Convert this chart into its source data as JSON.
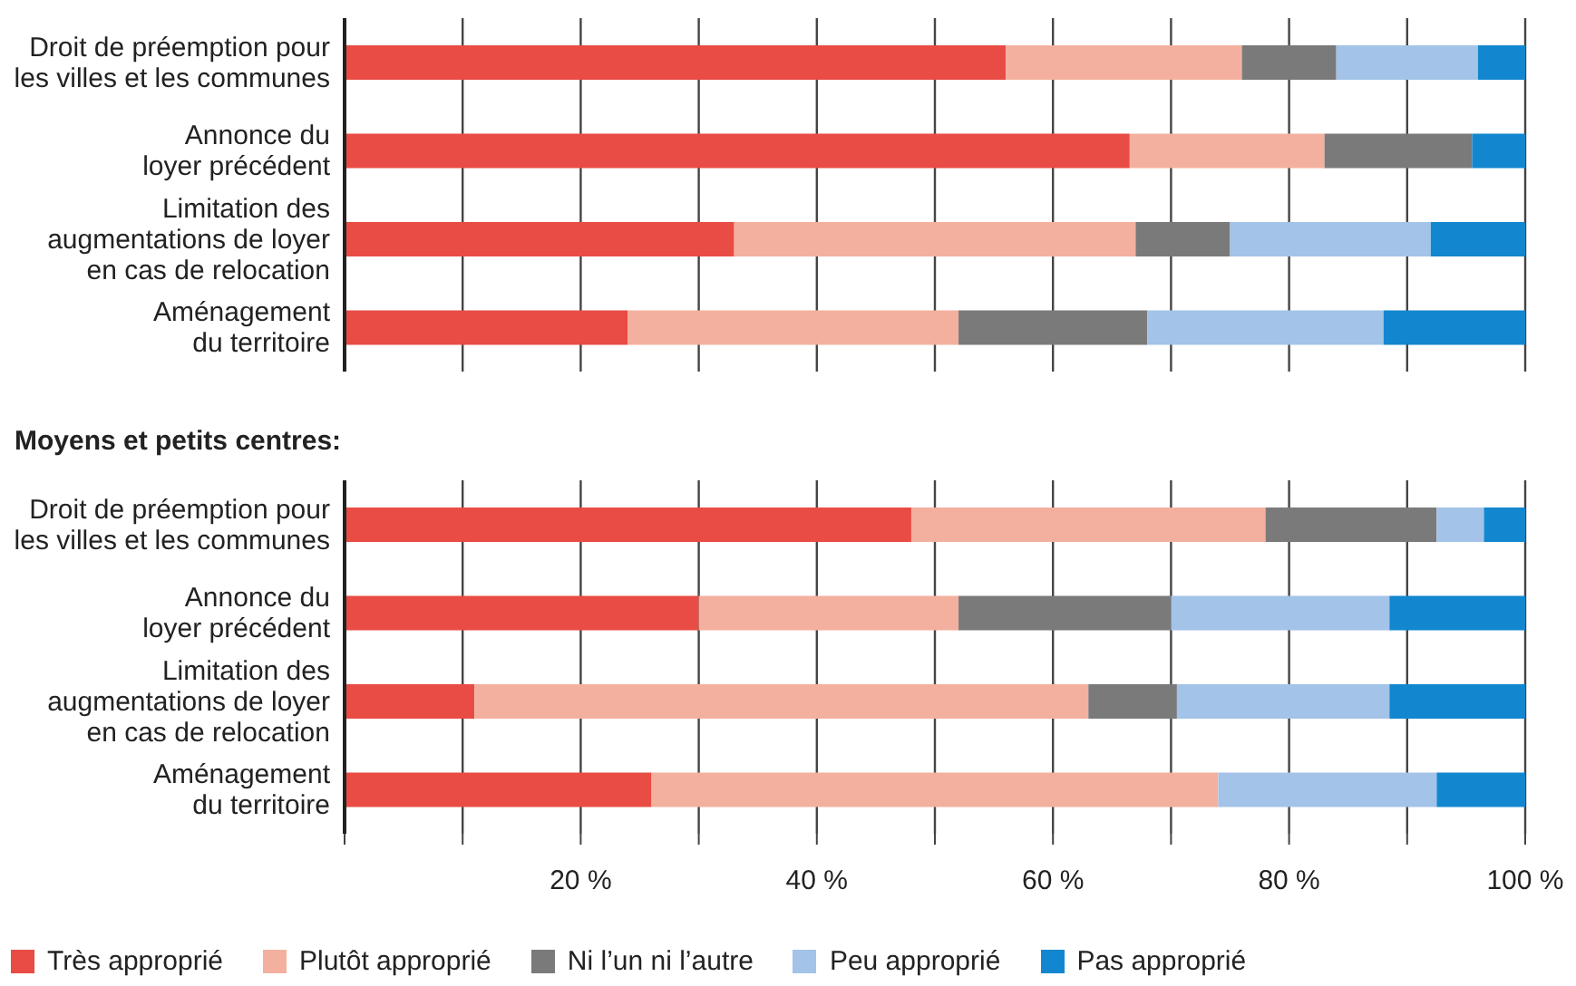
{
  "chart_data": [
    {
      "type": "bar",
      "orientation": "horizontal",
      "stacked": true,
      "categories": [
        "Droit de préemption pour\nles villes et les communes",
        "Annonce du\nloyer précédent",
        "Limitation des\naugmentations de loyer\nen cas de relocation",
        "Aménagement\ndu territoire"
      ],
      "series": [
        {
          "color": "#e84c44",
          "values": [
            56,
            66.5,
            33,
            24
          ]
        },
        {
          "color": "#f4b09e",
          "values": [
            20,
            16.5,
            34,
            28
          ]
        },
        {
          "color": "#7a7a7a",
          "values": [
            8,
            12.5,
            8,
            16
          ]
        },
        {
          "color": "#a3c3e8",
          "values": [
            12,
            0,
            17,
            20
          ]
        },
        {
          "color": "#1287cf",
          "values": [
            4,
            4.5,
            8,
            12
          ]
        }
      ],
      "xlim": [
        0,
        100
      ],
      "xticks": [
        0,
        10,
        20,
        30,
        40,
        50,
        60,
        70,
        80,
        90,
        100
      ],
      "grid": "x",
      "tick_labels": "y",
      "legend": false
    },
    {
      "type": "bar",
      "orientation": "horizontal",
      "stacked": true,
      "title": "Moyens et petits centres:",
      "categories": [
        "Droit de préemption pour\nles villes et les communes",
        "Annonce du\nloyer précédent",
        "Limitation des\naugmentations de loyer\nen cas de relocation",
        "Aménagement\ndu territoire"
      ],
      "series": [
        {
          "name": "Très approprié",
          "color": "#e84c44",
          "values": [
            48,
            30,
            11,
            26
          ]
        },
        {
          "name": "Plutôt approprié",
          "color": "#f4b09e",
          "values": [
            30,
            22,
            52,
            48
          ]
        },
        {
          "name": "Ni l’un ni l’autre",
          "color": "#7a7a7a",
          "values": [
            14.5,
            18,
            7.5,
            0
          ]
        },
        {
          "name": "Peu approprié",
          "color": "#a3c3e8",
          "values": [
            4,
            18.5,
            18,
            18.5
          ]
        },
        {
          "name": "Pas approprié",
          "color": "#1287cf",
          "values": [
            3.5,
            11.5,
            11.5,
            7.5
          ]
        }
      ],
      "xlim": [
        0,
        100
      ],
      "xticks": [
        {
          "value": 0,
          "label": null
        },
        {
          "value": 10,
          "label": null
        },
        {
          "value": 20,
          "label": "20 %"
        },
        {
          "value": 30,
          "label": null
        },
        {
          "value": 40,
          "label": "40 %"
        },
        {
          "value": 50,
          "label": null
        },
        {
          "value": 60,
          "label": "60 %"
        },
        {
          "value": 70,
          "label": null
        },
        {
          "value": 80,
          "label": "80 %"
        },
        {
          "value": 90,
          "label": null
        },
        {
          "value": 100,
          "label": "100 %"
        }
      ],
      "grid": "x",
      "legend": "bottom"
    }
  ]
}
